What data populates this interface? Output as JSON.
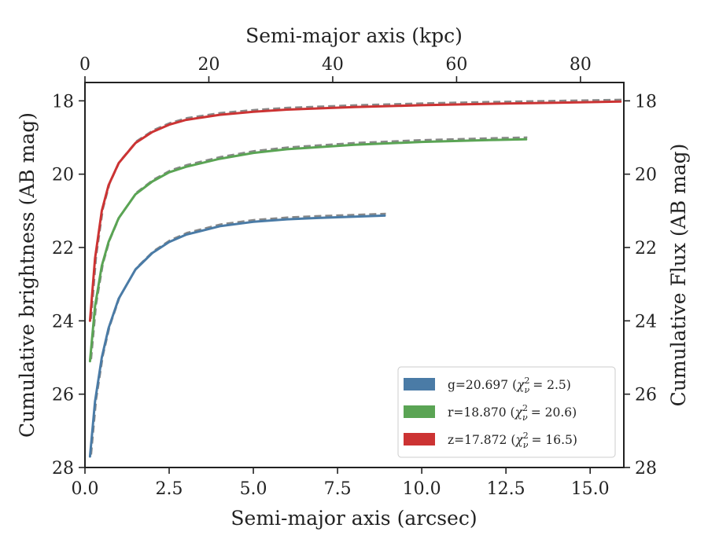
{
  "chart_data": {
    "type": "line",
    "xlabel": "Semi-major axis (arcsec)",
    "ylabel": "Cumulative brightness (AB mag)",
    "top_xlabel": "Semi-major axis (kpc)",
    "right_ylabel": "Cumulative Flux (AB mag)",
    "xlim": [
      0,
      16
    ],
    "ylim": [
      28,
      17.5
    ],
    "y_inverted": true,
    "top_xlim": [
      0,
      87
    ],
    "x_ticks": [
      "0.0",
      "2.5",
      "5.0",
      "7.5",
      "10.0",
      "12.5",
      "15.0"
    ],
    "top_x_ticks": [
      "0",
      "20",
      "40",
      "60",
      "80"
    ],
    "y_ticks": [
      "18",
      "20",
      "22",
      "24",
      "26",
      "28"
    ],
    "right_y_ticks": [
      "18",
      "20",
      "22",
      "24",
      "26",
      "28"
    ],
    "legend_position": "lower-right",
    "series": [
      {
        "name": "g=20.697",
        "chi_label": "χ",
        "chi_sub": "ν",
        "chi_sup": "2",
        "chi_value": "= 2.5)",
        "color": "#4a7ba6",
        "x": [
          0.15,
          0.3,
          0.5,
          0.7,
          1.0,
          1.5,
          2.0,
          2.5,
          3.0,
          4.0,
          5.0,
          6.0,
          7.0,
          8.0,
          8.9
        ],
        "y": [
          27.7,
          26.2,
          25.0,
          24.2,
          23.4,
          22.6,
          22.15,
          21.85,
          21.65,
          21.42,
          21.3,
          21.23,
          21.19,
          21.16,
          21.13
        ]
      },
      {
        "name": "r=18.870",
        "chi_label": "χ",
        "chi_sub": "ν",
        "chi_sup": "2",
        "chi_value": "= 20.6)",
        "color": "#5aa454",
        "x": [
          0.15,
          0.3,
          0.5,
          0.7,
          1.0,
          1.5,
          2.0,
          2.5,
          3.0,
          4.0,
          5.0,
          6.0,
          8.0,
          10.0,
          12.0,
          13.1
        ],
        "y": [
          25.1,
          23.6,
          22.5,
          21.85,
          21.2,
          20.55,
          20.2,
          19.95,
          19.8,
          19.58,
          19.42,
          19.32,
          19.2,
          19.12,
          19.07,
          19.05
        ]
      },
      {
        "name": "z=17.872",
        "chi_label": "χ",
        "chi_sub": "ν",
        "chi_sup": "2",
        "chi_value": "= 16.5)",
        "color": "#cc3333",
        "x": [
          0.15,
          0.3,
          0.5,
          0.7,
          1.0,
          1.5,
          2.0,
          2.5,
          3.0,
          4.0,
          5.0,
          6.0,
          8.0,
          10.0,
          12.0,
          14.0,
          15.9
        ],
        "y": [
          24.0,
          22.3,
          21.0,
          20.3,
          19.7,
          19.15,
          18.85,
          18.65,
          18.52,
          18.38,
          18.3,
          18.24,
          18.17,
          18.12,
          18.08,
          18.05,
          18.02
        ]
      }
    ],
    "model_color": "#888888"
  }
}
